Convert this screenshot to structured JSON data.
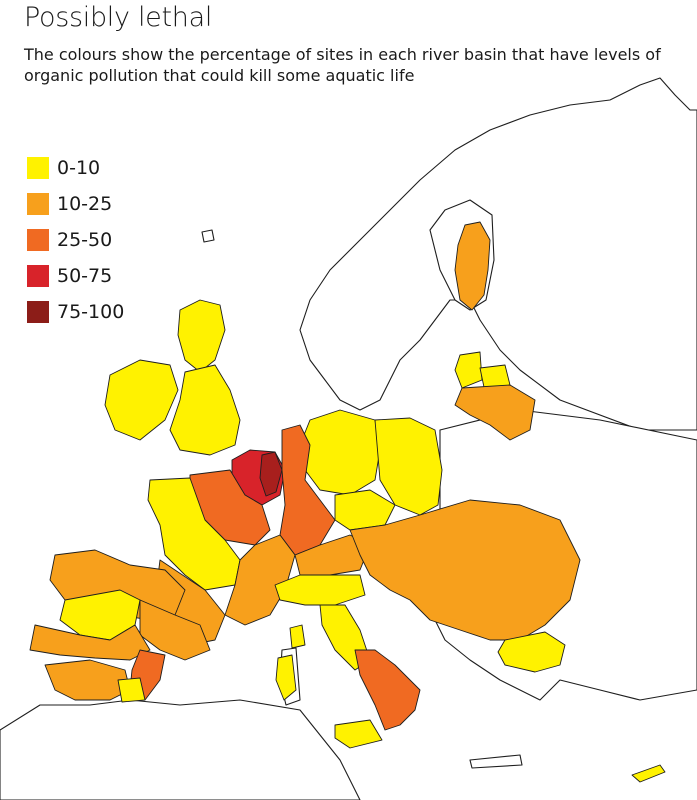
{
  "title": "Possibly lethal",
  "subtitle": "The colours show the percentage of sites in each river basin that have levels of organic pollution that could kill some aquatic life",
  "legend": [
    {
      "label": "0-10",
      "color": "#fff200"
    },
    {
      "label": "10-25",
      "color": "#f7a01c"
    },
    {
      "label": "25-50",
      "color": "#f06a22"
    },
    {
      "label": "50-75",
      "color": "#d8232a"
    },
    {
      "label": "75-100",
      "color": "#8c1d18"
    }
  ]
}
